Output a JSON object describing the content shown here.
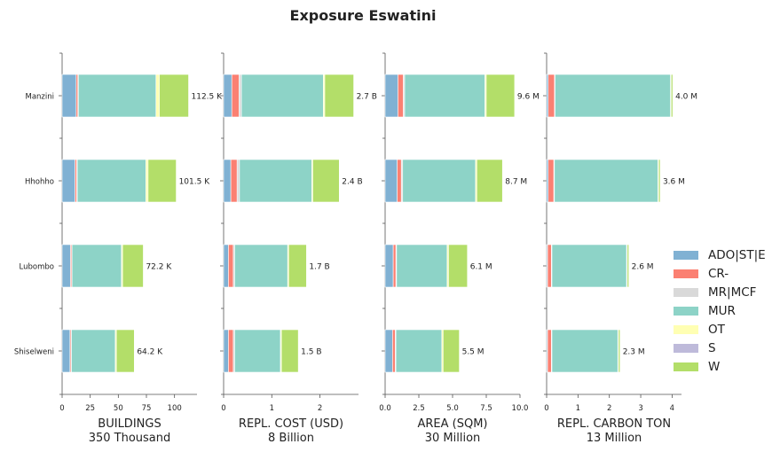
{
  "chart_data": {
    "type": "bar",
    "title": "Exposure Eswatini",
    "categories": [
      "Manzini",
      "Hhohho",
      "Lubombo",
      "Shiselweni"
    ],
    "legend": {
      "placement": "right",
      "entries": [
        {
          "name": "ADO|ST|E",
          "color": "#80b1d3"
        },
        {
          "name": "CR-",
          "color": "#fb8072"
        },
        {
          "name": "MR|MCF",
          "color": "#d9d9d9"
        },
        {
          "name": "MUR",
          "color": "#8dd3c7"
        },
        {
          "name": "OT",
          "color": "#ffffb3"
        },
        {
          "name": "S",
          "color": "#bebada"
        },
        {
          "name": "W",
          "color": "#b3de69"
        }
      ]
    },
    "panels": [
      {
        "xlabel": "BUILDINGS",
        "sublabel": "350 Thousand",
        "xlim": [
          0,
          120
        ],
        "ticks": [
          0,
          25,
          50,
          75,
          100
        ],
        "tick_labels": [
          "0",
          "25",
          "50",
          "75",
          "100"
        ],
        "totals": [
          "112.5 K",
          "101.5 K",
          "72.2 K",
          "64.2 K"
        ],
        "series": [
          {
            "name": "ADO|ST|E",
            "values": [
              12.5,
              11.5,
              7.5,
              7.0
            ]
          },
          {
            "name": "CR-",
            "values": [
              1.5,
              1.5,
              1.0,
              1.0
            ]
          },
          {
            "name": "MR|MCF",
            "values": [
              0.5,
              0.5,
              0.3,
              0.3
            ]
          },
          {
            "name": "MUR",
            "values": [
              69.0,
              61.0,
              44.0,
              39.0
            ]
          },
          {
            "name": "OT",
            "values": [
              3.0,
              2.0,
              1.0,
              1.0
            ]
          },
          {
            "name": "S",
            "values": [
              0.0,
              0.0,
              0.0,
              0.0
            ]
          },
          {
            "name": "W",
            "values": [
              26.0,
              25.0,
              18.4,
              15.9
            ]
          }
        ]
      },
      {
        "xlabel": "REPL. COST (USD)",
        "sublabel": "8 Billion",
        "xlim": [
          0,
          2.8
        ],
        "ticks": [
          0,
          1,
          2
        ],
        "tick_labels": [
          "0",
          "1",
          "2"
        ],
        "totals": [
          "2.7 B",
          "2.4 B",
          "1.7 B",
          "1.5 B"
        ],
        "series": [
          {
            "name": "ADO|ST|E",
            "values": [
              0.17,
              0.15,
              0.1,
              0.1
            ]
          },
          {
            "name": "CR-",
            "values": [
              0.15,
              0.13,
              0.1,
              0.1
            ]
          },
          {
            "name": "MR|MCF",
            "values": [
              0.05,
              0.05,
              0.03,
              0.03
            ]
          },
          {
            "name": "MUR",
            "values": [
              1.7,
              1.5,
              1.1,
              0.95
            ]
          },
          {
            "name": "OT",
            "values": [
              0.03,
              0.02,
              0.02,
              0.02
            ]
          },
          {
            "name": "S",
            "values": [
              0.0,
              0.0,
              0.0,
              0.0
            ]
          },
          {
            "name": "W",
            "values": [
              0.6,
              0.55,
              0.37,
              0.35
            ]
          }
        ]
      },
      {
        "xlabel": "AREA (SQM)",
        "sublabel": "30 Million",
        "xlim": [
          0,
          10
        ],
        "ticks": [
          0,
          2.5,
          5,
          7.5,
          10
        ],
        "tick_labels": [
          "0.0",
          "2.5",
          "5.0",
          "7.5",
          "10.0"
        ],
        "totals": [
          "9.6 M",
          "8.7 M",
          "6.1 M",
          "5.5 M"
        ],
        "series": [
          {
            "name": "ADO|ST|E",
            "values": [
              0.95,
              0.9,
              0.6,
              0.55
            ]
          },
          {
            "name": "CR-",
            "values": [
              0.4,
              0.3,
              0.2,
              0.2
            ]
          },
          {
            "name": "MR|MCF",
            "values": [
              0.1,
              0.1,
              0.05,
              0.05
            ]
          },
          {
            "name": "MUR",
            "values": [
              5.95,
              5.4,
              3.75,
              3.4
            ]
          },
          {
            "name": "OT",
            "values": [
              0.1,
              0.1,
              0.1,
              0.1
            ]
          },
          {
            "name": "S",
            "values": [
              0.0,
              0.0,
              0.0,
              0.0
            ]
          },
          {
            "name": "W",
            "values": [
              2.1,
              1.9,
              1.4,
              1.2
            ]
          }
        ]
      },
      {
        "xlabel": "REPL. CARBON TON",
        "sublabel": "13 Million",
        "xlim": [
          0,
          4.3
        ],
        "ticks": [
          0,
          1,
          2,
          3,
          4
        ],
        "tick_labels": [
          "0",
          "1",
          "2",
          "3",
          "4"
        ],
        "totals": [
          "4.0 M",
          "3.6 M",
          "2.6 M",
          "2.3 M"
        ],
        "series": [
          {
            "name": "ADO|ST|E",
            "values": [
              0.05,
              0.05,
              0.03,
              0.03
            ]
          },
          {
            "name": "CR-",
            "values": [
              0.2,
              0.18,
              0.12,
              0.12
            ]
          },
          {
            "name": "MR|MCF",
            "values": [
              0.02,
              0.02,
              0.02,
              0.02
            ]
          },
          {
            "name": "MUR",
            "values": [
              3.68,
              3.3,
              2.38,
              2.1
            ]
          },
          {
            "name": "OT",
            "values": [
              0.02,
              0.02,
              0.02,
              0.02
            ]
          },
          {
            "name": "S",
            "values": [
              0.0,
              0.0,
              0.0,
              0.0
            ]
          },
          {
            "name": "W",
            "values": [
              0.05,
              0.05,
              0.05,
              0.05
            ]
          }
        ]
      }
    ]
  }
}
